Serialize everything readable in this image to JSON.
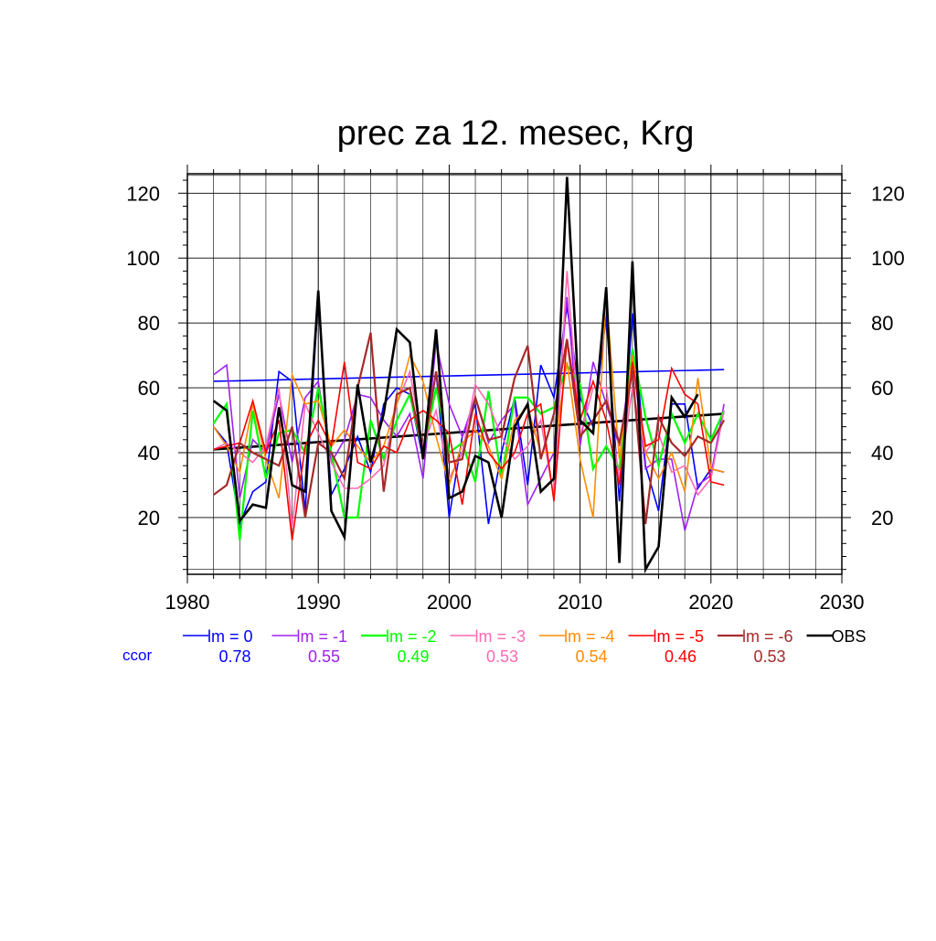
{
  "chart_data": {
    "type": "line",
    "title": "prec za 12. mesec, Krg",
    "xlabel": "",
    "ylabel": "",
    "xlim": [
      1980,
      2030
    ],
    "ylim": [
      2.5,
      126
    ],
    "xticks": [
      1980,
      1990,
      2000,
      2010,
      2020,
      2030
    ],
    "yticks": [
      20,
      40,
      60,
      80,
      100,
      120
    ],
    "grid": true,
    "legend_position": "bottom",
    "x": [
      1982,
      1983,
      1984,
      1985,
      1986,
      1987,
      1988,
      1989,
      1990,
      1991,
      1992,
      1993,
      1994,
      1995,
      1996,
      1997,
      1998,
      1999,
      2000,
      2001,
      2002,
      2003,
      2004,
      2005,
      2006,
      2007,
      2008,
      2009,
      2010,
      2011,
      2012,
      2013,
      2014,
      2015,
      2016,
      2017,
      2018,
      2019,
      2020,
      2021
    ],
    "series": [
      {
        "name": "lm = 0",
        "color": "#0000ff",
        "width": 1.6,
        "ccor": "0.78",
        "values": [
          48,
          43,
          18,
          28,
          31,
          65,
          62,
          22,
          88,
          27,
          35,
          45,
          34,
          55,
          60,
          58,
          38,
          65,
          20,
          45,
          55,
          18,
          40,
          57,
          30,
          67,
          57,
          85,
          57,
          48,
          82,
          25,
          83,
          36,
          22,
          55,
          55,
          29,
          35,
          34
        ],
        "trend": [
          62,
          65.6
        ]
      },
      {
        "name": "lm = -1",
        "color": "#a020f0",
        "width": 1.6,
        "ccor": "0.55",
        "values": [
          64,
          67,
          26,
          44,
          40,
          58,
          37,
          57,
          62,
          37,
          44,
          58,
          57,
          50,
          45,
          52,
          32,
          74,
          55,
          45,
          57,
          43,
          50,
          55,
          24,
          32,
          40,
          88,
          42,
          68,
          55,
          42,
          70,
          35,
          38,
          38,
          16,
          30,
          33,
          55
        ],
        "trend": null
      },
      {
        "name": "lm = -2",
        "color": "#00ff00",
        "width": 2.2,
        "ccor": "0.49",
        "values": [
          49,
          55,
          13,
          53,
          32,
          46,
          47,
          40,
          60,
          40,
          20,
          20,
          50,
          38,
          50,
          58,
          40,
          60,
          40,
          43,
          31,
          59,
          32,
          57,
          57,
          52,
          54,
          67,
          61,
          35,
          42,
          35,
          72,
          51,
          36,
          52,
          43,
          52,
          44,
          53
        ],
        "trend": null
      },
      {
        "name": "lm = -3",
        "color": "#ff69b4",
        "width": 1.6,
        "ccor": "0.53",
        "values": [
          41,
          43,
          40,
          37,
          42,
          60,
          17,
          55,
          46,
          37,
          29,
          29,
          32,
          36,
          55,
          65,
          42,
          53,
          32,
          40,
          61,
          55,
          45,
          38,
          42,
          50,
          26,
          96,
          45,
          60,
          60,
          32,
          60,
          40,
          46,
          34,
          36,
          27,
          32,
          53
        ],
        "trend": null
      },
      {
        "name": "lm = -4",
        "color": "#ff8c00",
        "width": 1.6,
        "ccor": "0.54",
        "values": [
          48,
          42,
          34,
          55,
          38,
          26,
          64,
          55,
          56,
          42,
          47,
          42,
          37,
          42,
          55,
          70,
          62,
          45,
          30,
          43,
          47,
          42,
          32,
          50,
          54,
          40,
          40,
          68,
          38,
          20,
          88,
          38,
          70,
          40,
          32,
          40,
          28,
          63,
          35,
          34
        ],
        "trend": null
      },
      {
        "name": "lm = -5",
        "color": "#ff0000",
        "width": 1.6,
        "ccor": "0.46",
        "values": [
          41,
          42,
          43,
          56,
          40,
          50,
          13,
          42,
          50,
          42,
          68,
          37,
          35,
          42,
          40,
          50,
          53,
          50,
          46,
          24,
          52,
          40,
          35,
          40,
          52,
          55,
          25,
          75,
          50,
          62,
          50,
          30,
          68,
          42,
          44,
          66,
          58,
          55,
          31,
          30
        ],
        "trend": null
      },
      {
        "name": "lm = -6",
        "color": "#a52a2a",
        "width": 2.2,
        "ccor": "0.53",
        "values": [
          27,
          30,
          43,
          40,
          38,
          36,
          48,
          20,
          43,
          40,
          32,
          60,
          77,
          28,
          58,
          60,
          40,
          65,
          37,
          38,
          57,
          44,
          45,
          63,
          73,
          38,
          52,
          75,
          45,
          50,
          56,
          43,
          65,
          18,
          51,
          43,
          39,
          45,
          43,
          50
        ],
        "trend": null
      },
      {
        "name": "OBS",
        "color": "#000000",
        "width": 2.6,
        "ccor": "",
        "values": [
          56,
          53,
          19,
          24,
          23,
          54,
          30,
          28,
          90,
          22,
          14,
          61,
          37,
          52,
          78,
          74,
          38,
          78,
          26,
          28,
          39,
          37,
          20,
          48,
          55,
          28,
          32,
          125,
          50,
          46,
          91,
          6,
          99,
          4,
          11,
          57,
          51,
          58,
          null,
          null
        ],
        "trend": [
          41,
          52
        ]
      }
    ],
    "ccor_label": "ccor"
  }
}
